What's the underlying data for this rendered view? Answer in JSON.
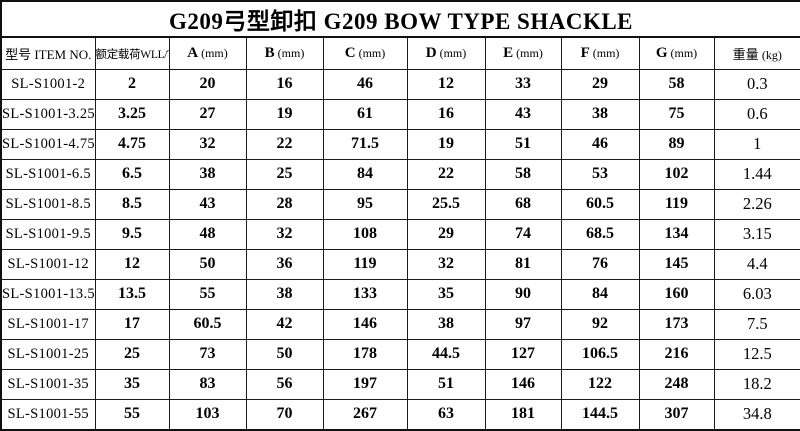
{
  "title": "G209弓型卸扣 G209 BOW TYPE SHACKLE",
  "table": {
    "headers": [
      {
        "text": "型号 ITEM NO.",
        "unit": ""
      },
      {
        "text": "额定载荷WLL/T",
        "unit": ""
      },
      {
        "text": "A",
        "unit": "(mm)"
      },
      {
        "text": "B",
        "unit": "(mm)"
      },
      {
        "text": "C",
        "unit": "(mm)"
      },
      {
        "text": "D",
        "unit": "(mm)"
      },
      {
        "text": "E",
        "unit": "(mm)"
      },
      {
        "text": "F",
        "unit": "(mm)"
      },
      {
        "text": "G",
        "unit": "(mm)"
      },
      {
        "text": "重量",
        "unit": "(kg)"
      }
    ],
    "rows": [
      [
        "SL-S1001-2",
        "2",
        "20",
        "16",
        "46",
        "12",
        "33",
        "29",
        "58",
        "0.3"
      ],
      [
        "SL-S1001-3.25",
        "3.25",
        "27",
        "19",
        "61",
        "16",
        "43",
        "38",
        "75",
        "0.6"
      ],
      [
        "SL-S1001-4.75",
        "4.75",
        "32",
        "22",
        "71.5",
        "19",
        "51",
        "46",
        "89",
        "1"
      ],
      [
        "SL-S1001-6.5",
        "6.5",
        "38",
        "25",
        "84",
        "22",
        "58",
        "53",
        "102",
        "1.44"
      ],
      [
        "SL-S1001-8.5",
        "8.5",
        "43",
        "28",
        "95",
        "25.5",
        "68",
        "60.5",
        "119",
        "2.26"
      ],
      [
        "SL-S1001-9.5",
        "9.5",
        "48",
        "32",
        "108",
        "29",
        "74",
        "68.5",
        "134",
        "3.15"
      ],
      [
        "SL-S1001-12",
        "12",
        "50",
        "36",
        "119",
        "32",
        "81",
        "76",
        "145",
        "4.4"
      ],
      [
        "SL-S1001-13.5",
        "13.5",
        "55",
        "38",
        "133",
        "35",
        "90",
        "84",
        "160",
        "6.03"
      ],
      [
        "SL-S1001-17",
        "17",
        "60.5",
        "42",
        "146",
        "38",
        "97",
        "92",
        "173",
        "7.5"
      ],
      [
        "SL-S1001-25",
        "25",
        "73",
        "50",
        "178",
        "44.5",
        "127",
        "106.5",
        "216",
        "12.5"
      ],
      [
        "SL-S1001-35",
        "35",
        "83",
        "56",
        "197",
        "51",
        "146",
        "122",
        "248",
        "18.2"
      ],
      [
        "SL-S1001-55",
        "55",
        "103",
        "70",
        "267",
        "63",
        "181",
        "144.5",
        "307",
        "34.8"
      ]
    ]
  }
}
